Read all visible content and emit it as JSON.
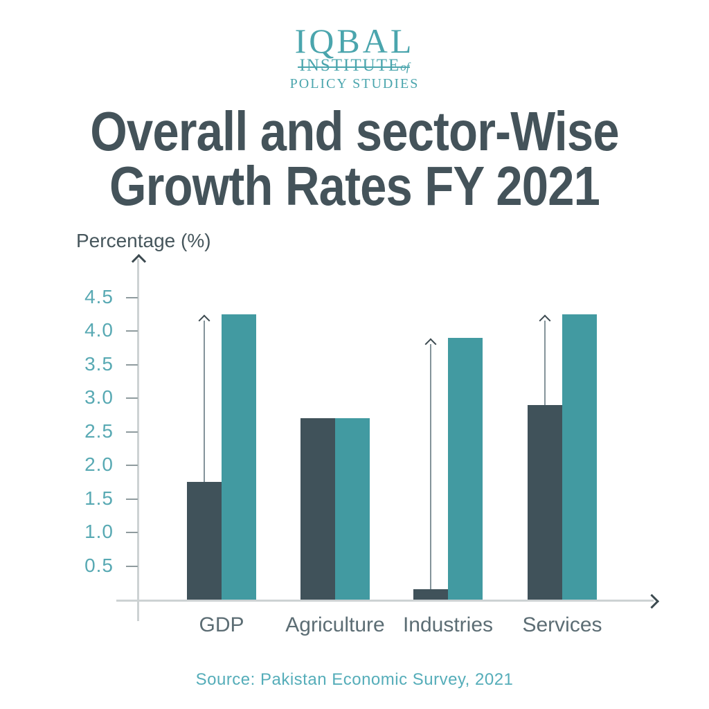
{
  "logo": {
    "line1": "IQBAL",
    "line2": "INSTITUTE",
    "line2_suffix": "of",
    "line3": "POLICY STUDIES",
    "color": "#4AA5AD"
  },
  "title": {
    "line1": "Overall and sector-Wise",
    "line2": "Growth Rates FY 2021",
    "color": "#44535A"
  },
  "chart_data": {
    "type": "bar",
    "title": "Overall and sector-Wise Growth Rates FY 2021",
    "ylabel": "Percentage (%)",
    "xlabel": "",
    "categories": [
      "GDP",
      "Agriculture",
      "Industries",
      "Services"
    ],
    "series": [
      {
        "name": "dark",
        "color": "#40525A",
        "values": [
          1.75,
          2.7,
          0.15,
          2.9
        ]
      },
      {
        "name": "teal",
        "color": "#429AA1",
        "values": [
          4.25,
          2.7,
          3.9,
          4.25
        ]
      }
    ],
    "yticks": [
      4.5,
      4.0,
      3.5,
      3.0,
      2.5,
      2.0,
      1.5,
      1.0,
      0.5
    ],
    "ytick_labels": [
      "4.5",
      "4.0",
      "3.5",
      "3.0",
      "2.5",
      "2.0",
      "1.5",
      "1.0",
      "0.5"
    ],
    "ylim": [
      0,
      5
    ],
    "grid": false,
    "legend": "none",
    "annotations": [
      {
        "type": "growth-arrow",
        "category": "GDP",
        "from_series": "dark",
        "to_series": "teal"
      },
      {
        "type": "growth-arrow",
        "category": "Industries",
        "from_series": "dark",
        "to_series": "teal"
      },
      {
        "type": "growth-arrow",
        "category": "Services",
        "from_series": "dark",
        "to_series": "teal"
      }
    ]
  },
  "source": {
    "text": "Source: Pakistan Economic Survey, 2021",
    "color": "#55ADB9"
  },
  "colors": {
    "axis_line": "#CDD2D3",
    "tick_mark": "#8F9B9E",
    "tick_label": "#58A9B3",
    "category_label": "#5C6D74",
    "arrow_line": "#84939A",
    "arrow_head": "#3C4A50",
    "ylabel_text": "#46565C"
  }
}
